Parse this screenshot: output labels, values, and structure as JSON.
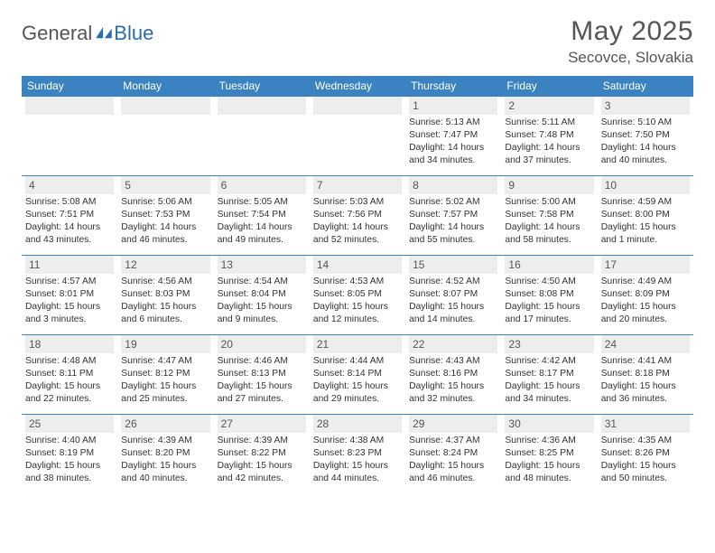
{
  "logo": {
    "text1": "General",
    "text2": "Blue"
  },
  "header": {
    "title": "May 2025",
    "location": "Secovce, Slovakia"
  },
  "colors": {
    "header_bg": "#3b83c0",
    "header_text": "#ffffff",
    "daynum_bg": "#ededed",
    "row_border": "#3b83c0",
    "body_text": "#333333",
    "muted_text": "#555555",
    "background": "#ffffff"
  },
  "days_of_week": [
    "Sunday",
    "Monday",
    "Tuesday",
    "Wednesday",
    "Thursday",
    "Friday",
    "Saturday"
  ],
  "weeks": [
    [
      null,
      null,
      null,
      null,
      {
        "n": "1",
        "sunrise": "5:13 AM",
        "sunset": "7:47 PM",
        "daylight": "14 hours and 34 minutes."
      },
      {
        "n": "2",
        "sunrise": "5:11 AM",
        "sunset": "7:48 PM",
        "daylight": "14 hours and 37 minutes."
      },
      {
        "n": "3",
        "sunrise": "5:10 AM",
        "sunset": "7:50 PM",
        "daylight": "14 hours and 40 minutes."
      }
    ],
    [
      {
        "n": "4",
        "sunrise": "5:08 AM",
        "sunset": "7:51 PM",
        "daylight": "14 hours and 43 minutes."
      },
      {
        "n": "5",
        "sunrise": "5:06 AM",
        "sunset": "7:53 PM",
        "daylight": "14 hours and 46 minutes."
      },
      {
        "n": "6",
        "sunrise": "5:05 AM",
        "sunset": "7:54 PM",
        "daylight": "14 hours and 49 minutes."
      },
      {
        "n": "7",
        "sunrise": "5:03 AM",
        "sunset": "7:56 PM",
        "daylight": "14 hours and 52 minutes."
      },
      {
        "n": "8",
        "sunrise": "5:02 AM",
        "sunset": "7:57 PM",
        "daylight": "14 hours and 55 minutes."
      },
      {
        "n": "9",
        "sunrise": "5:00 AM",
        "sunset": "7:58 PM",
        "daylight": "14 hours and 58 minutes."
      },
      {
        "n": "10",
        "sunrise": "4:59 AM",
        "sunset": "8:00 PM",
        "daylight": "15 hours and 1 minute."
      }
    ],
    [
      {
        "n": "11",
        "sunrise": "4:57 AM",
        "sunset": "8:01 PM",
        "daylight": "15 hours and 3 minutes."
      },
      {
        "n": "12",
        "sunrise": "4:56 AM",
        "sunset": "8:03 PM",
        "daylight": "15 hours and 6 minutes."
      },
      {
        "n": "13",
        "sunrise": "4:54 AM",
        "sunset": "8:04 PM",
        "daylight": "15 hours and 9 minutes."
      },
      {
        "n": "14",
        "sunrise": "4:53 AM",
        "sunset": "8:05 PM",
        "daylight": "15 hours and 12 minutes."
      },
      {
        "n": "15",
        "sunrise": "4:52 AM",
        "sunset": "8:07 PM",
        "daylight": "15 hours and 14 minutes."
      },
      {
        "n": "16",
        "sunrise": "4:50 AM",
        "sunset": "8:08 PM",
        "daylight": "15 hours and 17 minutes."
      },
      {
        "n": "17",
        "sunrise": "4:49 AM",
        "sunset": "8:09 PM",
        "daylight": "15 hours and 20 minutes."
      }
    ],
    [
      {
        "n": "18",
        "sunrise": "4:48 AM",
        "sunset": "8:11 PM",
        "daylight": "15 hours and 22 minutes."
      },
      {
        "n": "19",
        "sunrise": "4:47 AM",
        "sunset": "8:12 PM",
        "daylight": "15 hours and 25 minutes."
      },
      {
        "n": "20",
        "sunrise": "4:46 AM",
        "sunset": "8:13 PM",
        "daylight": "15 hours and 27 minutes."
      },
      {
        "n": "21",
        "sunrise": "4:44 AM",
        "sunset": "8:14 PM",
        "daylight": "15 hours and 29 minutes."
      },
      {
        "n": "22",
        "sunrise": "4:43 AM",
        "sunset": "8:16 PM",
        "daylight": "15 hours and 32 minutes."
      },
      {
        "n": "23",
        "sunrise": "4:42 AM",
        "sunset": "8:17 PM",
        "daylight": "15 hours and 34 minutes."
      },
      {
        "n": "24",
        "sunrise": "4:41 AM",
        "sunset": "8:18 PM",
        "daylight": "15 hours and 36 minutes."
      }
    ],
    [
      {
        "n": "25",
        "sunrise": "4:40 AM",
        "sunset": "8:19 PM",
        "daylight": "15 hours and 38 minutes."
      },
      {
        "n": "26",
        "sunrise": "4:39 AM",
        "sunset": "8:20 PM",
        "daylight": "15 hours and 40 minutes."
      },
      {
        "n": "27",
        "sunrise": "4:39 AM",
        "sunset": "8:22 PM",
        "daylight": "15 hours and 42 minutes."
      },
      {
        "n": "28",
        "sunrise": "4:38 AM",
        "sunset": "8:23 PM",
        "daylight": "15 hours and 44 minutes."
      },
      {
        "n": "29",
        "sunrise": "4:37 AM",
        "sunset": "8:24 PM",
        "daylight": "15 hours and 46 minutes."
      },
      {
        "n": "30",
        "sunrise": "4:36 AM",
        "sunset": "8:25 PM",
        "daylight": "15 hours and 48 minutes."
      },
      {
        "n": "31",
        "sunrise": "4:35 AM",
        "sunset": "8:26 PM",
        "daylight": "15 hours and 50 minutes."
      }
    ]
  ]
}
